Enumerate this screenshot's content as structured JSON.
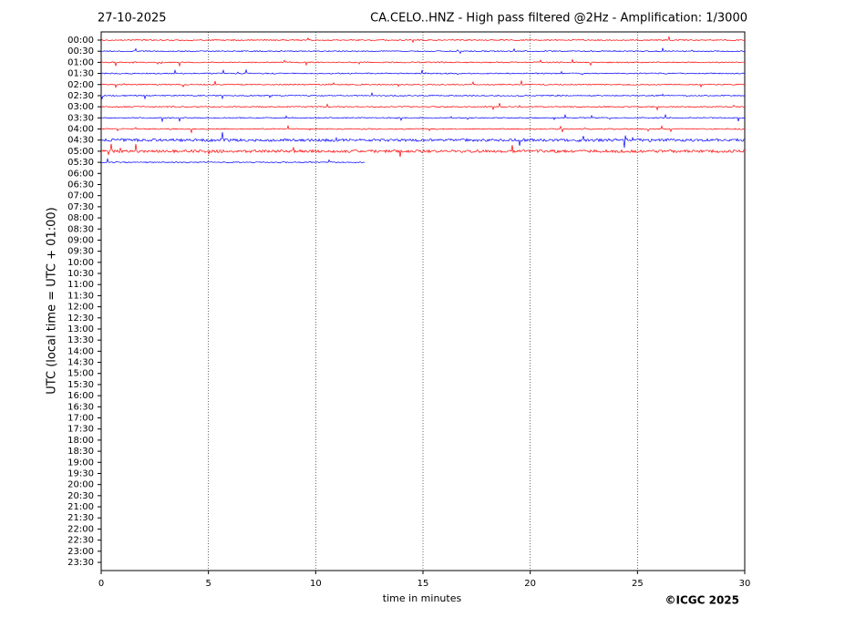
{
  "chart_data": {
    "type": "helicorder",
    "date": "27-10-2025",
    "title": "CA.CELO..HNZ - High pass filtered @2Hz - Amplification: 1/3000",
    "ylabel": "UTC (local time = UTC + 01:00)",
    "xlabel": "time in minutes",
    "credit": "©ICGC 2025",
    "categories": [
      "00:00",
      "00:30",
      "01:00",
      "01:30",
      "02:00",
      "02:30",
      "03:00",
      "03:30",
      "04:00",
      "04:30",
      "05:00",
      "05:30",
      "06:00",
      "06:30",
      "07:00",
      "07:30",
      "08:00",
      "08:30",
      "09:00",
      "09:30",
      "10:00",
      "10:30",
      "11:00",
      "11:30",
      "12:00",
      "12:30",
      "13:00",
      "13:30",
      "14:00",
      "14:30",
      "15:00",
      "15:30",
      "16:00",
      "16:30",
      "17:00",
      "17:30",
      "18:00",
      "18:30",
      "19:00",
      "19:30",
      "20:00",
      "20:30",
      "21:00",
      "21:30",
      "22:00",
      "22:30",
      "23:00",
      "23:30"
    ],
    "values": [
      30,
      30,
      30,
      30,
      30,
      30,
      30,
      30,
      30,
      30,
      30,
      12.3,
      null,
      null,
      null,
      null,
      null,
      null,
      null,
      null,
      null,
      null,
      null,
      null,
      null,
      null,
      null,
      null,
      null,
      null,
      null,
      null,
      null,
      null,
      null,
      null,
      null,
      null,
      null,
      null,
      null,
      null,
      null,
      null,
      null,
      null,
      null,
      null
    ],
    "colors": [
      "#ff0000",
      "#0000ff"
    ],
    "xlim": [
      0,
      30
    ],
    "xticks": [
      0,
      5,
      10,
      15,
      20,
      25,
      30
    ],
    "grid": true
  }
}
